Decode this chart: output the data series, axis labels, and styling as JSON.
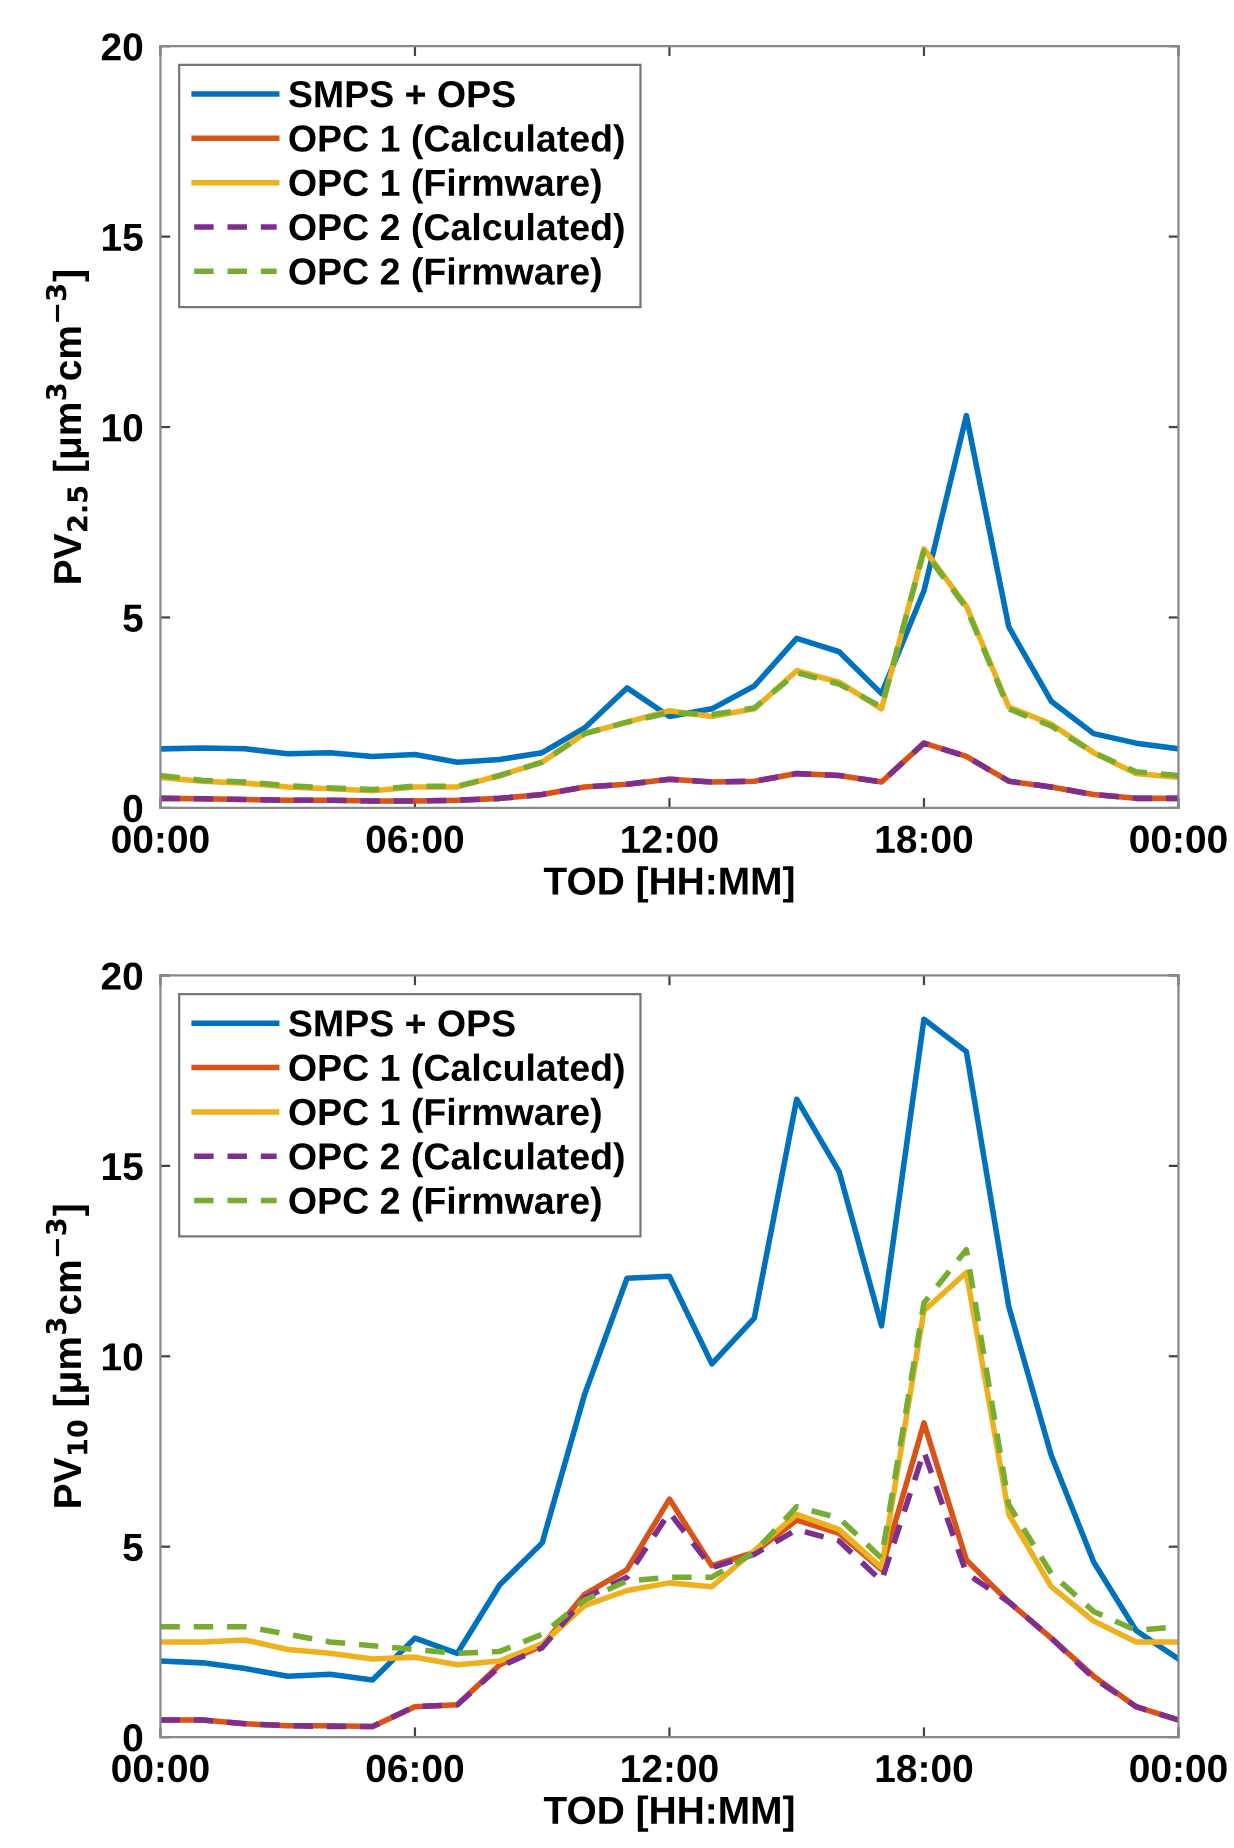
{
  "chart_data": [
    {
      "type": "line",
      "ylabel": "PV$_{2.5}$ [μm$^{3}$cm$^{−3}$]",
      "xlabel": "TOD [HH:MM]",
      "x": [
        0,
        1,
        2,
        3,
        4,
        5,
        6,
        7,
        8,
        9,
        10,
        11,
        12,
        13,
        14,
        15,
        16,
        17,
        18,
        19,
        20,
        21,
        22,
        23,
        24
      ],
      "xlim": [
        0,
        24
      ],
      "xticks": [
        {
          "value": 0,
          "label": "00:00"
        },
        {
          "value": 6,
          "label": "06:00"
        },
        {
          "value": 12,
          "label": "12:00"
        },
        {
          "value": 18,
          "label": "18:00"
        },
        {
          "value": 24,
          "label": "00:00"
        }
      ],
      "ylim": [
        0,
        20
      ],
      "yticks": [
        0,
        5,
        10,
        15,
        20
      ],
      "grid": false,
      "legend": "top left",
      "marker": "none",
      "series": [
        {
          "name": "SMPS + OPS",
          "color": "#0072bd",
          "line_style": "solid",
          "values": [
            1.55,
            1.57,
            1.55,
            1.42,
            1.45,
            1.35,
            1.4,
            1.2,
            1.27,
            1.45,
            2.1,
            3.15,
            2.4,
            2.6,
            3.2,
            4.45,
            4.1,
            3.0,
            5.7,
            10.3,
            4.75,
            2.8,
            1.95,
            1.7,
            1.55
          ]
        },
        {
          "name": "OPC 1 (Calculated)",
          "color": "#d95319",
          "line_style": "solid",
          "values": [
            0.25,
            0.24,
            0.22,
            0.2,
            0.2,
            0.18,
            0.18,
            0.2,
            0.25,
            0.35,
            0.55,
            0.62,
            0.75,
            0.68,
            0.7,
            0.9,
            0.85,
            0.68,
            1.7,
            1.35,
            0.7,
            0.55,
            0.35,
            0.25,
            0.25
          ]
        },
        {
          "name": "OPC 1 (Firmware)",
          "color": "#edb120",
          "line_style": "solid",
          "values": [
            0.8,
            0.7,
            0.65,
            0.55,
            0.5,
            0.45,
            0.55,
            0.55,
            0.85,
            1.2,
            1.95,
            2.25,
            2.55,
            2.4,
            2.6,
            3.6,
            3.3,
            2.6,
            6.8,
            5.3,
            2.65,
            2.2,
            1.45,
            0.9,
            0.8
          ]
        },
        {
          "name": "OPC 2 (Calculated)",
          "color": "#7e2f8e",
          "line_style": "dashed",
          "values": [
            0.25,
            0.24,
            0.22,
            0.2,
            0.2,
            0.18,
            0.18,
            0.2,
            0.25,
            0.35,
            0.55,
            0.62,
            0.75,
            0.68,
            0.7,
            0.9,
            0.85,
            0.68,
            1.7,
            1.35,
            0.7,
            0.55,
            0.35,
            0.25,
            0.25
          ]
        },
        {
          "name": "OPC 2 (Firmware)",
          "color": "#77ac30",
          "line_style": "dashed",
          "values": [
            0.85,
            0.72,
            0.68,
            0.58,
            0.52,
            0.48,
            0.57,
            0.57,
            0.85,
            1.2,
            1.95,
            2.25,
            2.5,
            2.45,
            2.62,
            3.55,
            3.25,
            2.65,
            6.75,
            5.25,
            2.6,
            2.15,
            1.45,
            0.95,
            0.85
          ]
        }
      ]
    },
    {
      "type": "line",
      "ylabel": "PV$_{10}$ [μm$^{3}$cm$^{−3}$]",
      "xlabel": "TOD [HH:MM]",
      "x": [
        0,
        1,
        2,
        3,
        4,
        5,
        6,
        7,
        8,
        9,
        10,
        11,
        12,
        13,
        14,
        15,
        16,
        17,
        18,
        19,
        20,
        21,
        22,
        23,
        24
      ],
      "xlim": [
        0,
        24
      ],
      "xticks": [
        {
          "value": 0,
          "label": "00:00"
        },
        {
          "value": 6,
          "label": "06:00"
        },
        {
          "value": 12,
          "label": "12:00"
        },
        {
          "value": 18,
          "label": "18:00"
        },
        {
          "value": 24,
          "label": "00:00"
        }
      ],
      "ylim": [
        0,
        20
      ],
      "yticks": [
        0,
        5,
        10,
        15,
        20
      ],
      "grid": false,
      "legend": "top left",
      "marker": "none",
      "series": [
        {
          "name": "SMPS + OPS",
          "color": "#0072bd",
          "line_style": "solid",
          "values": [
            2.0,
            1.95,
            1.8,
            1.6,
            1.65,
            1.5,
            2.6,
            2.2,
            4.0,
            5.1,
            9.0,
            12.05,
            12.1,
            9.8,
            11.0,
            16.75,
            14.85,
            10.8,
            18.85,
            18.0,
            11.3,
            7.4,
            4.6,
            2.8,
            2.05
          ]
        },
        {
          "name": "OPC 1 (Calculated)",
          "color": "#d95319",
          "line_style": "solid",
          "values": [
            0.45,
            0.45,
            0.35,
            0.3,
            0.3,
            0.28,
            0.8,
            0.85,
            1.9,
            2.4,
            3.75,
            4.4,
            6.25,
            4.5,
            4.85,
            5.7,
            5.35,
            4.4,
            8.25,
            4.65,
            3.55,
            2.6,
            1.6,
            0.8,
            0.45
          ]
        },
        {
          "name": "OPC 1 (Firmware)",
          "color": "#edb120",
          "line_style": "solid",
          "values": [
            2.5,
            2.5,
            2.55,
            2.3,
            2.2,
            2.05,
            2.1,
            1.9,
            2.0,
            2.45,
            3.45,
            3.85,
            4.05,
            3.95,
            4.9,
            5.85,
            5.45,
            4.45,
            11.2,
            12.2,
            5.85,
            3.95,
            3.05,
            2.5,
            2.5
          ]
        },
        {
          "name": "OPC 2 (Calculated)",
          "color": "#7e2f8e",
          "line_style": "dashed",
          "values": [
            0.45,
            0.45,
            0.35,
            0.3,
            0.28,
            0.28,
            0.8,
            0.85,
            1.85,
            2.35,
            3.65,
            4.2,
            5.9,
            4.45,
            4.8,
            5.45,
            5.15,
            4.1,
            7.5,
            4.3,
            3.55,
            2.6,
            1.55,
            0.8,
            0.45
          ]
        },
        {
          "name": "OPC 2 (Firmware)",
          "color": "#77ac30",
          "line_style": "dashed",
          "values": [
            2.9,
            2.9,
            2.9,
            2.7,
            2.5,
            2.4,
            2.3,
            2.2,
            2.25,
            2.7,
            3.6,
            4.1,
            4.2,
            4.2,
            4.85,
            6.05,
            5.75,
            4.7,
            11.4,
            12.8,
            6.1,
            4.3,
            3.3,
            2.8,
            2.9
          ]
        }
      ]
    }
  ]
}
